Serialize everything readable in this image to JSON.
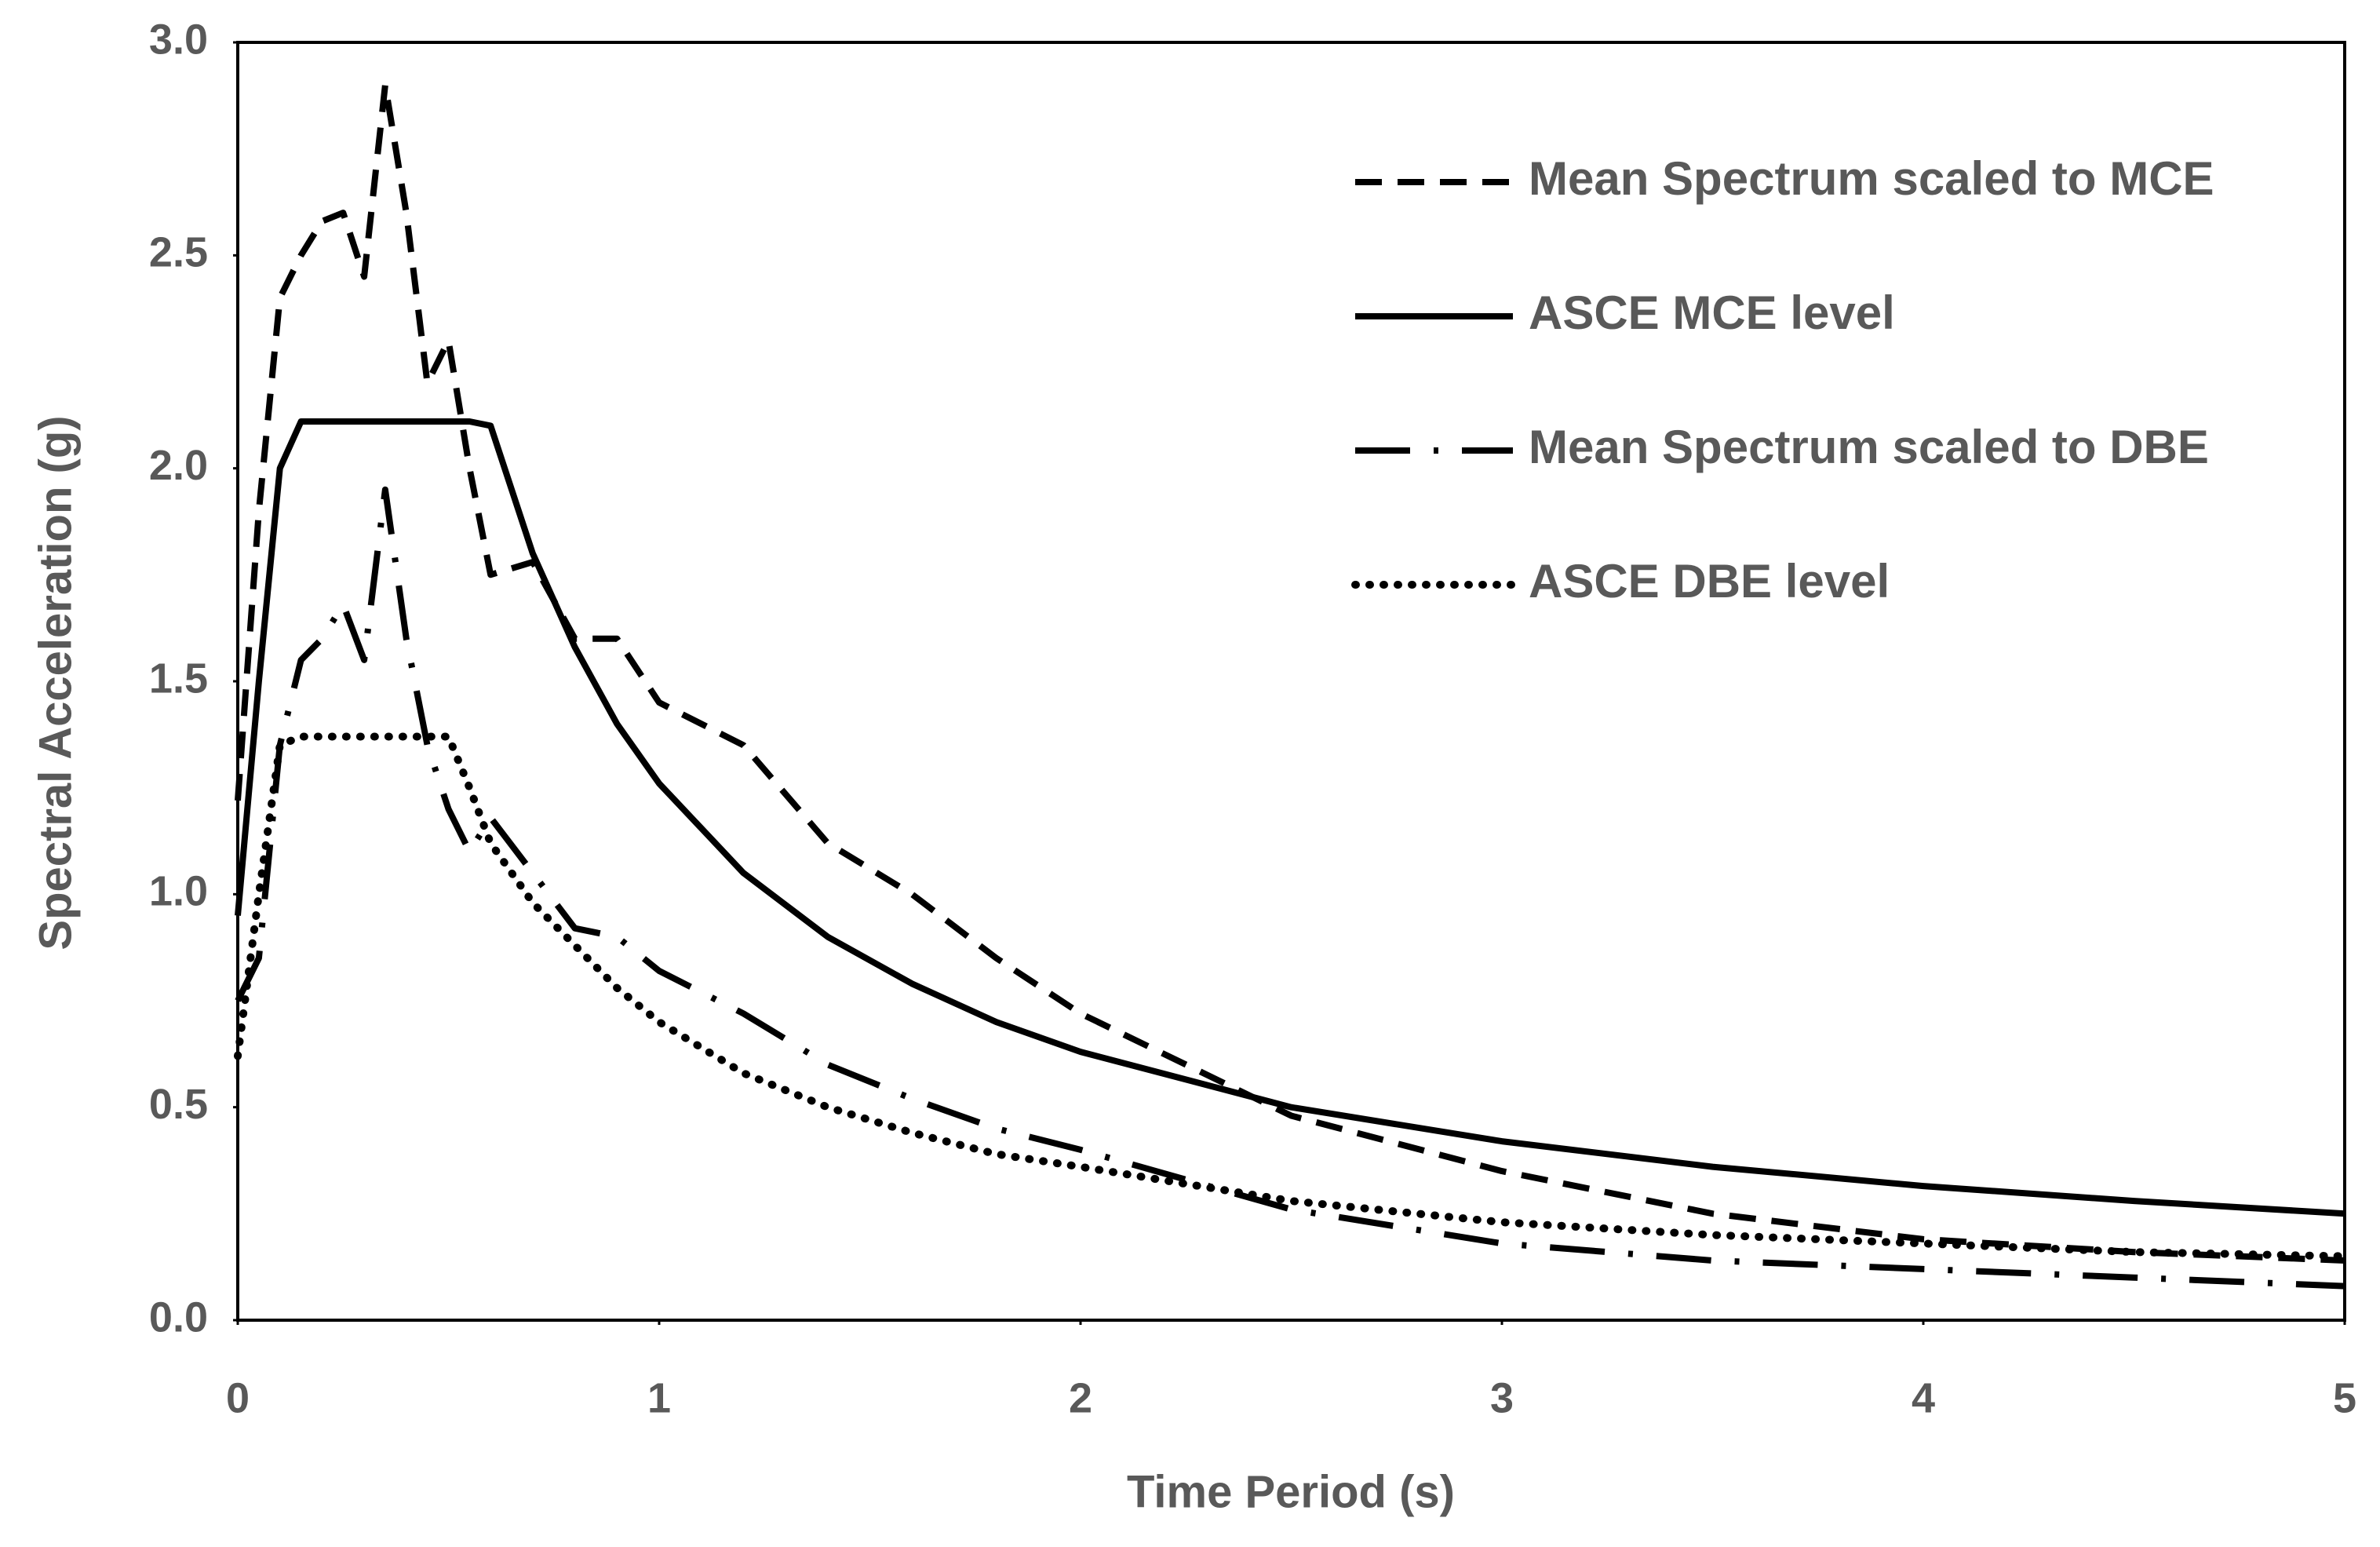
{
  "chart_data": {
    "type": "line",
    "x_label": "Time Period (s)",
    "y_label": "Spectral Acceleration (g)",
    "x": [
      0,
      0.05,
      0.1,
      0.15,
      0.2,
      0.25,
      0.3,
      0.35,
      0.4,
      0.45,
      0.5,
      0.55,
      0.6,
      0.7,
      0.8,
      0.9,
      1.0,
      1.2,
      1.4,
      1.6,
      1.8,
      2.0,
      2.5,
      3.0,
      3.5,
      4.0,
      4.5,
      5.0
    ],
    "series": [
      {
        "name": "Mean Spectrum scaled to MCE",
        "color": "#000000",
        "dash": "dashed",
        "values": [
          1.22,
          1.9,
          2.4,
          2.5,
          2.58,
          2.6,
          2.45,
          2.9,
          2.6,
          2.2,
          2.3,
          2.0,
          1.75,
          1.78,
          1.6,
          1.6,
          1.45,
          1.35,
          1.12,
          1.0,
          0.85,
          0.72,
          0.48,
          0.35,
          0.25,
          0.19,
          0.16,
          0.14
        ]
      },
      {
        "name": "ASCE MCE level",
        "color": "#000000",
        "dash": "solid",
        "values": [
          0.95,
          1.5,
          2.0,
          2.11,
          2.11,
          2.11,
          2.11,
          2.11,
          2.11,
          2.11,
          2.11,
          2.11,
          2.1,
          1.8,
          1.58,
          1.4,
          1.26,
          1.05,
          0.9,
          0.79,
          0.7,
          0.63,
          0.5,
          0.42,
          0.36,
          0.315,
          0.28,
          0.25
        ]
      },
      {
        "name": "Mean Spectrum scaled to DBE",
        "color": "#000000",
        "dash": "dashdot",
        "values": [
          0.75,
          0.85,
          1.35,
          1.55,
          1.6,
          1.68,
          1.55,
          1.95,
          1.6,
          1.35,
          1.2,
          1.1,
          1.18,
          1.05,
          0.92,
          0.9,
          0.82,
          0.72,
          0.6,
          0.52,
          0.45,
          0.4,
          0.26,
          0.18,
          0.14,
          0.12,
          0.1,
          0.08
        ]
      },
      {
        "name": "ASCE DBE level",
        "color": "#000000",
        "dash": "dotted",
        "values": [
          0.62,
          1.0,
          1.35,
          1.37,
          1.37,
          1.37,
          1.37,
          1.37,
          1.37,
          1.37,
          1.37,
          1.25,
          1.12,
          0.98,
          0.88,
          0.78,
          0.7,
          0.58,
          0.5,
          0.44,
          0.39,
          0.36,
          0.28,
          0.23,
          0.2,
          0.18,
          0.16,
          0.15
        ]
      }
    ],
    "xlim": [
      0,
      5
    ],
    "xticks": [
      0,
      1,
      2,
      3,
      4,
      5
    ],
    "ylim": [
      0,
      3
    ],
    "yticks": [
      {
        "value": 0,
        "label": "0.0"
      },
      0.5,
      {
        "value": 1,
        "label": "1.0"
      },
      1.5,
      {
        "value": 2,
        "label": "2.0"
      },
      2.5,
      {
        "value": 3,
        "label": "3.0"
      }
    ],
    "grid": false,
    "legend": "upper right"
  }
}
